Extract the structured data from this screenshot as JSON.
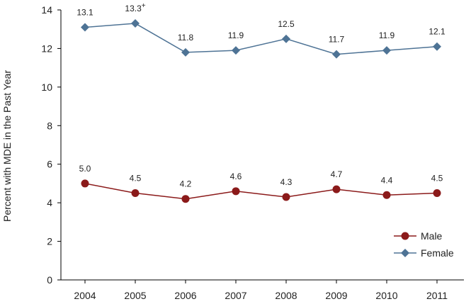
{
  "chart_data": {
    "type": "line",
    "title": "",
    "xlabel": "",
    "ylabel": "Percent with MDE in the Past Year",
    "categories": [
      "2004",
      "2005",
      "2006",
      "2007",
      "2008",
      "2009",
      "2010",
      "2011"
    ],
    "ylim": [
      0,
      14
    ],
    "yticks": [
      0,
      2,
      4,
      6,
      8,
      10,
      12,
      14
    ],
    "grid": false,
    "legend_position": "bottom-right",
    "series": [
      {
        "name": "Male",
        "color": "#8b1a1a",
        "marker": "circle",
        "values": [
          5.0,
          4.5,
          4.2,
          4.6,
          4.3,
          4.7,
          4.4,
          4.5
        ],
        "labels": [
          "5.0",
          "4.5",
          "4.2",
          "4.6",
          "4.3",
          "4.7",
          "4.4",
          "4.5"
        ],
        "label_suffix": [
          "",
          "",
          "",
          "",
          "",
          "",
          "",
          ""
        ]
      },
      {
        "name": "Female",
        "color": "#4e7395",
        "marker": "diamond",
        "values": [
          13.1,
          13.3,
          11.8,
          11.9,
          12.5,
          11.7,
          11.9,
          12.1
        ],
        "labels": [
          "13.1",
          "13.3",
          "11.8",
          "11.9",
          "12.5",
          "11.7",
          "11.9",
          "12.1"
        ],
        "label_suffix": [
          "",
          "+",
          "",
          "",
          "",
          "",
          "",
          ""
        ]
      }
    ]
  }
}
